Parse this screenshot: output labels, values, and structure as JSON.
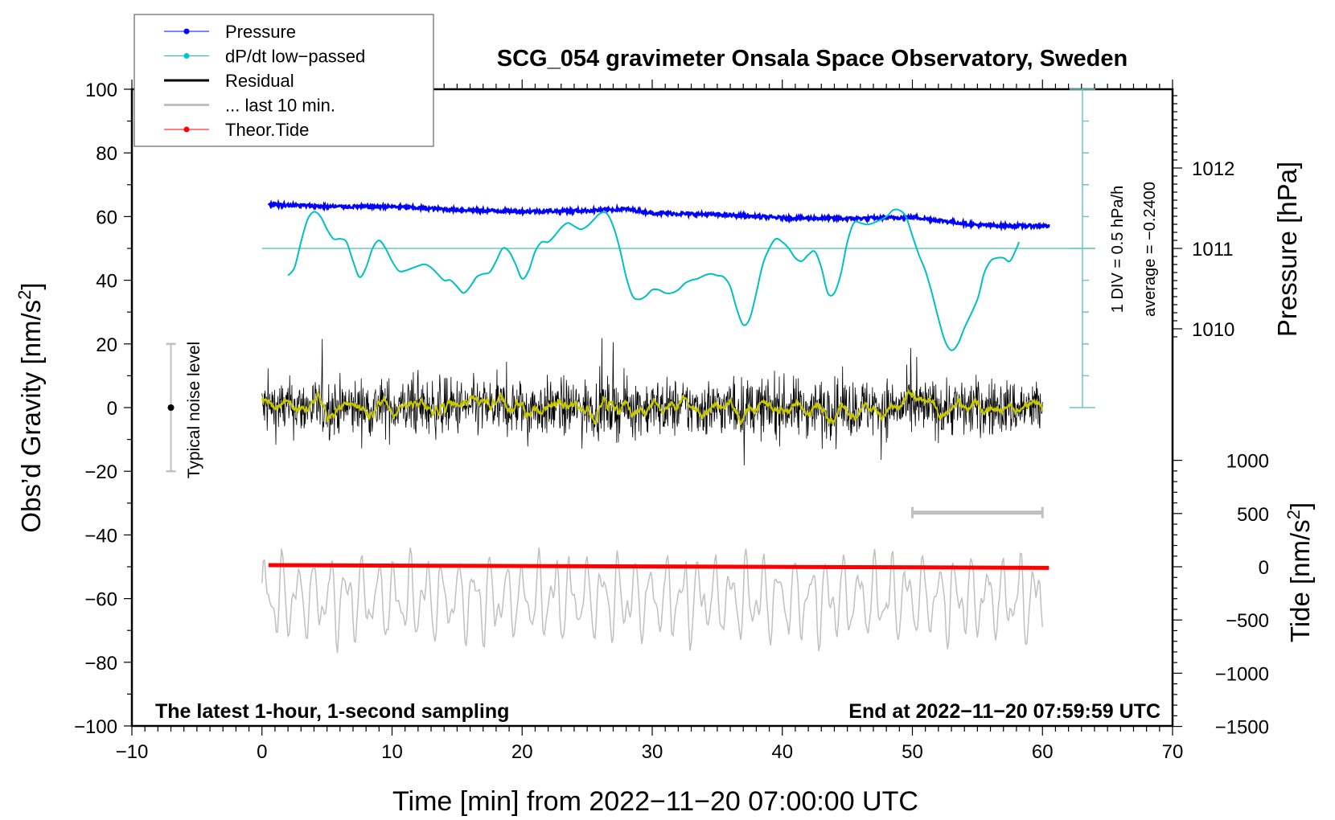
{
  "chart_data": {
    "type": "line",
    "title": "SCG_054 gravimeter Onsala Space Observatory, Sweden",
    "xlabel": "Time [min] from 2022−11−20 07:00:00 UTC",
    "ylabel": "Obs’d Gravity [nm/s",
    "ylabel_sup": "2",
    "ylabel_end": "]",
    "y2label": "Pressure [hPa]",
    "y3label": "Tide [nm/s",
    "y3label_sup": "2",
    "y3label_end": "]",
    "xlim": [
      -10,
      70
    ],
    "ylim": [
      -100,
      100
    ],
    "pressure_lim_hPa": [
      1009,
      1013
    ],
    "tide_lim": [
      -1500,
      1000
    ],
    "xticks": [
      "−10",
      "0",
      "10",
      "20",
      "30",
      "40",
      "50",
      "60",
      "70"
    ],
    "yticks": [
      "100",
      "80",
      "60",
      "40",
      "20",
      "0",
      "−20",
      "−40",
      "−60",
      "−80",
      "−100"
    ],
    "pressure_ticks": [
      "1012",
      "1011",
      "1010"
    ],
    "tide_ticks": [
      "1000",
      "500",
      "0",
      "−500",
      "−1000",
      "−1500"
    ],
    "annotations": {
      "left_note": "The latest 1-hour, 1-second sampling",
      "right_note": "End at 2022−11−20 07:59:59 UTC",
      "noise_label": "Typical noise level",
      "div_label": "1 DIV = 0.5 hPa/h",
      "average_label": "average = −0.2400"
    },
    "legend": {
      "placement": "top-left",
      "entries": [
        {
          "label": "Pressure",
          "color": "#0000ff"
        },
        {
          "label": "dP/dt low−passed",
          "color": "#00c8c8"
        },
        {
          "label": "Residual",
          "color": "#000000"
        },
        {
          "label": "... last 10 min.",
          "color": "#c0c0c0"
        },
        {
          "label": "Theor.Tide",
          "color": "#ff0000"
        }
      ]
    },
    "series": [
      {
        "name": "Pressure",
        "unit": "hPa",
        "color": "#0000ff",
        "x": [
          0.5,
          5,
          10,
          15,
          20,
          25,
          28,
          30,
          35,
          40,
          45,
          48,
          50,
          55,
          58,
          60.5
        ],
        "values": [
          1011.55,
          1011.52,
          1011.52,
          1011.48,
          1011.46,
          1011.47,
          1011.49,
          1011.44,
          1011.42,
          1011.38,
          1011.37,
          1011.38,
          1011.39,
          1011.29,
          1011.28,
          1011.28
        ]
      },
      {
        "name": "dP/dt low-passed",
        "unit": "gravity-axis units (1 DIV = 10)",
        "color": "#00c8c8",
        "zero_line": 50,
        "x": [
          2,
          2.5,
          3,
          3.5,
          4,
          4.5,
          5,
          5.5,
          6,
          6.5,
          7,
          7.5,
          8,
          8.5,
          9,
          9.5,
          10,
          10.5,
          11,
          12,
          12.5,
          13,
          13.5,
          14,
          14.5,
          15,
          15.5,
          16,
          16.5,
          17,
          17.5,
          18,
          18.5,
          19,
          19.5,
          20,
          20.5,
          21,
          21.5,
          22,
          22.5,
          23,
          23.5,
          24,
          24.5,
          25,
          25.5,
          26,
          26.5,
          27,
          27.5,
          28,
          28.5,
          29,
          29.5,
          30,
          30.5,
          31,
          31.5,
          32,
          32.5,
          33,
          33.5,
          34,
          34.5,
          35,
          35.5,
          36,
          36.5,
          37,
          37.5,
          38,
          38.5,
          39,
          39.5,
          40,
          40.5,
          41,
          41.5,
          42,
          42.5,
          43,
          43.5,
          44,
          44.5,
          45,
          45.5,
          46,
          46.5,
          47,
          48,
          48.5,
          49,
          49.5,
          50,
          50.5,
          51,
          51.5,
          52,
          52.5,
          53,
          53.5,
          54,
          55,
          55.5,
          56,
          56.5,
          57,
          57.5,
          58,
          58.2
        ],
        "values": [
          41.5,
          44,
          52,
          59,
          61.5,
          60,
          56,
          53,
          53,
          52,
          46,
          41,
          44,
          50,
          52.5,
          50,
          46,
          43,
          43,
          44.5,
          45,
          44,
          42,
          40,
          40,
          38,
          36,
          38,
          41,
          42,
          42.5,
          46,
          50,
          49,
          45,
          40.5,
          43,
          49,
          52,
          52,
          54,
          56.5,
          58,
          57,
          56,
          57,
          59,
          61,
          61,
          57,
          50,
          41,
          35,
          34,
          35,
          37,
          37,
          36,
          36,
          37,
          39,
          40,
          40.5,
          41.5,
          42,
          41.5,
          41,
          38,
          31,
          26,
          28,
          36,
          45,
          50,
          53,
          52,
          50,
          47,
          46,
          48,
          49,
          44,
          36,
          36,
          42,
          52,
          58,
          58,
          57.5,
          58,
          60,
          62,
          62,
          60,
          54,
          48,
          43,
          36,
          28,
          21,
          18,
          20,
          25,
          34,
          42,
          46,
          47,
          47,
          46,
          50,
          52
        ]
      },
      {
        "name": "Residual",
        "unit": "nm/s2",
        "color": "#000000",
        "x_range": [
          0,
          60
        ],
        "center": 0,
        "typical_amplitude": 10,
        "max_excursion": [
          -27,
          30
        ]
      },
      {
        "name": "Residual smoothed",
        "unit": "nm/s2",
        "color": "#c8c800",
        "x_range": [
          0,
          60
        ],
        "center": 0
      },
      {
        "name": "last 10 min.",
        "unit": "nm/s2",
        "color": "#c0c0c0",
        "time_scale_bar_min": [
          50,
          60
        ],
        "center": -60,
        "range": [
          -82,
          -44
        ]
      },
      {
        "name": "Theor.Tide",
        "unit": "nm/s2",
        "color": "#ff0000",
        "x": [
          0.5,
          60.5
        ],
        "values": [
          15,
          -10
        ]
      }
    ],
    "noise_level_bar": {
      "x": -7,
      "range": [
        -20,
        20
      ]
    }
  }
}
